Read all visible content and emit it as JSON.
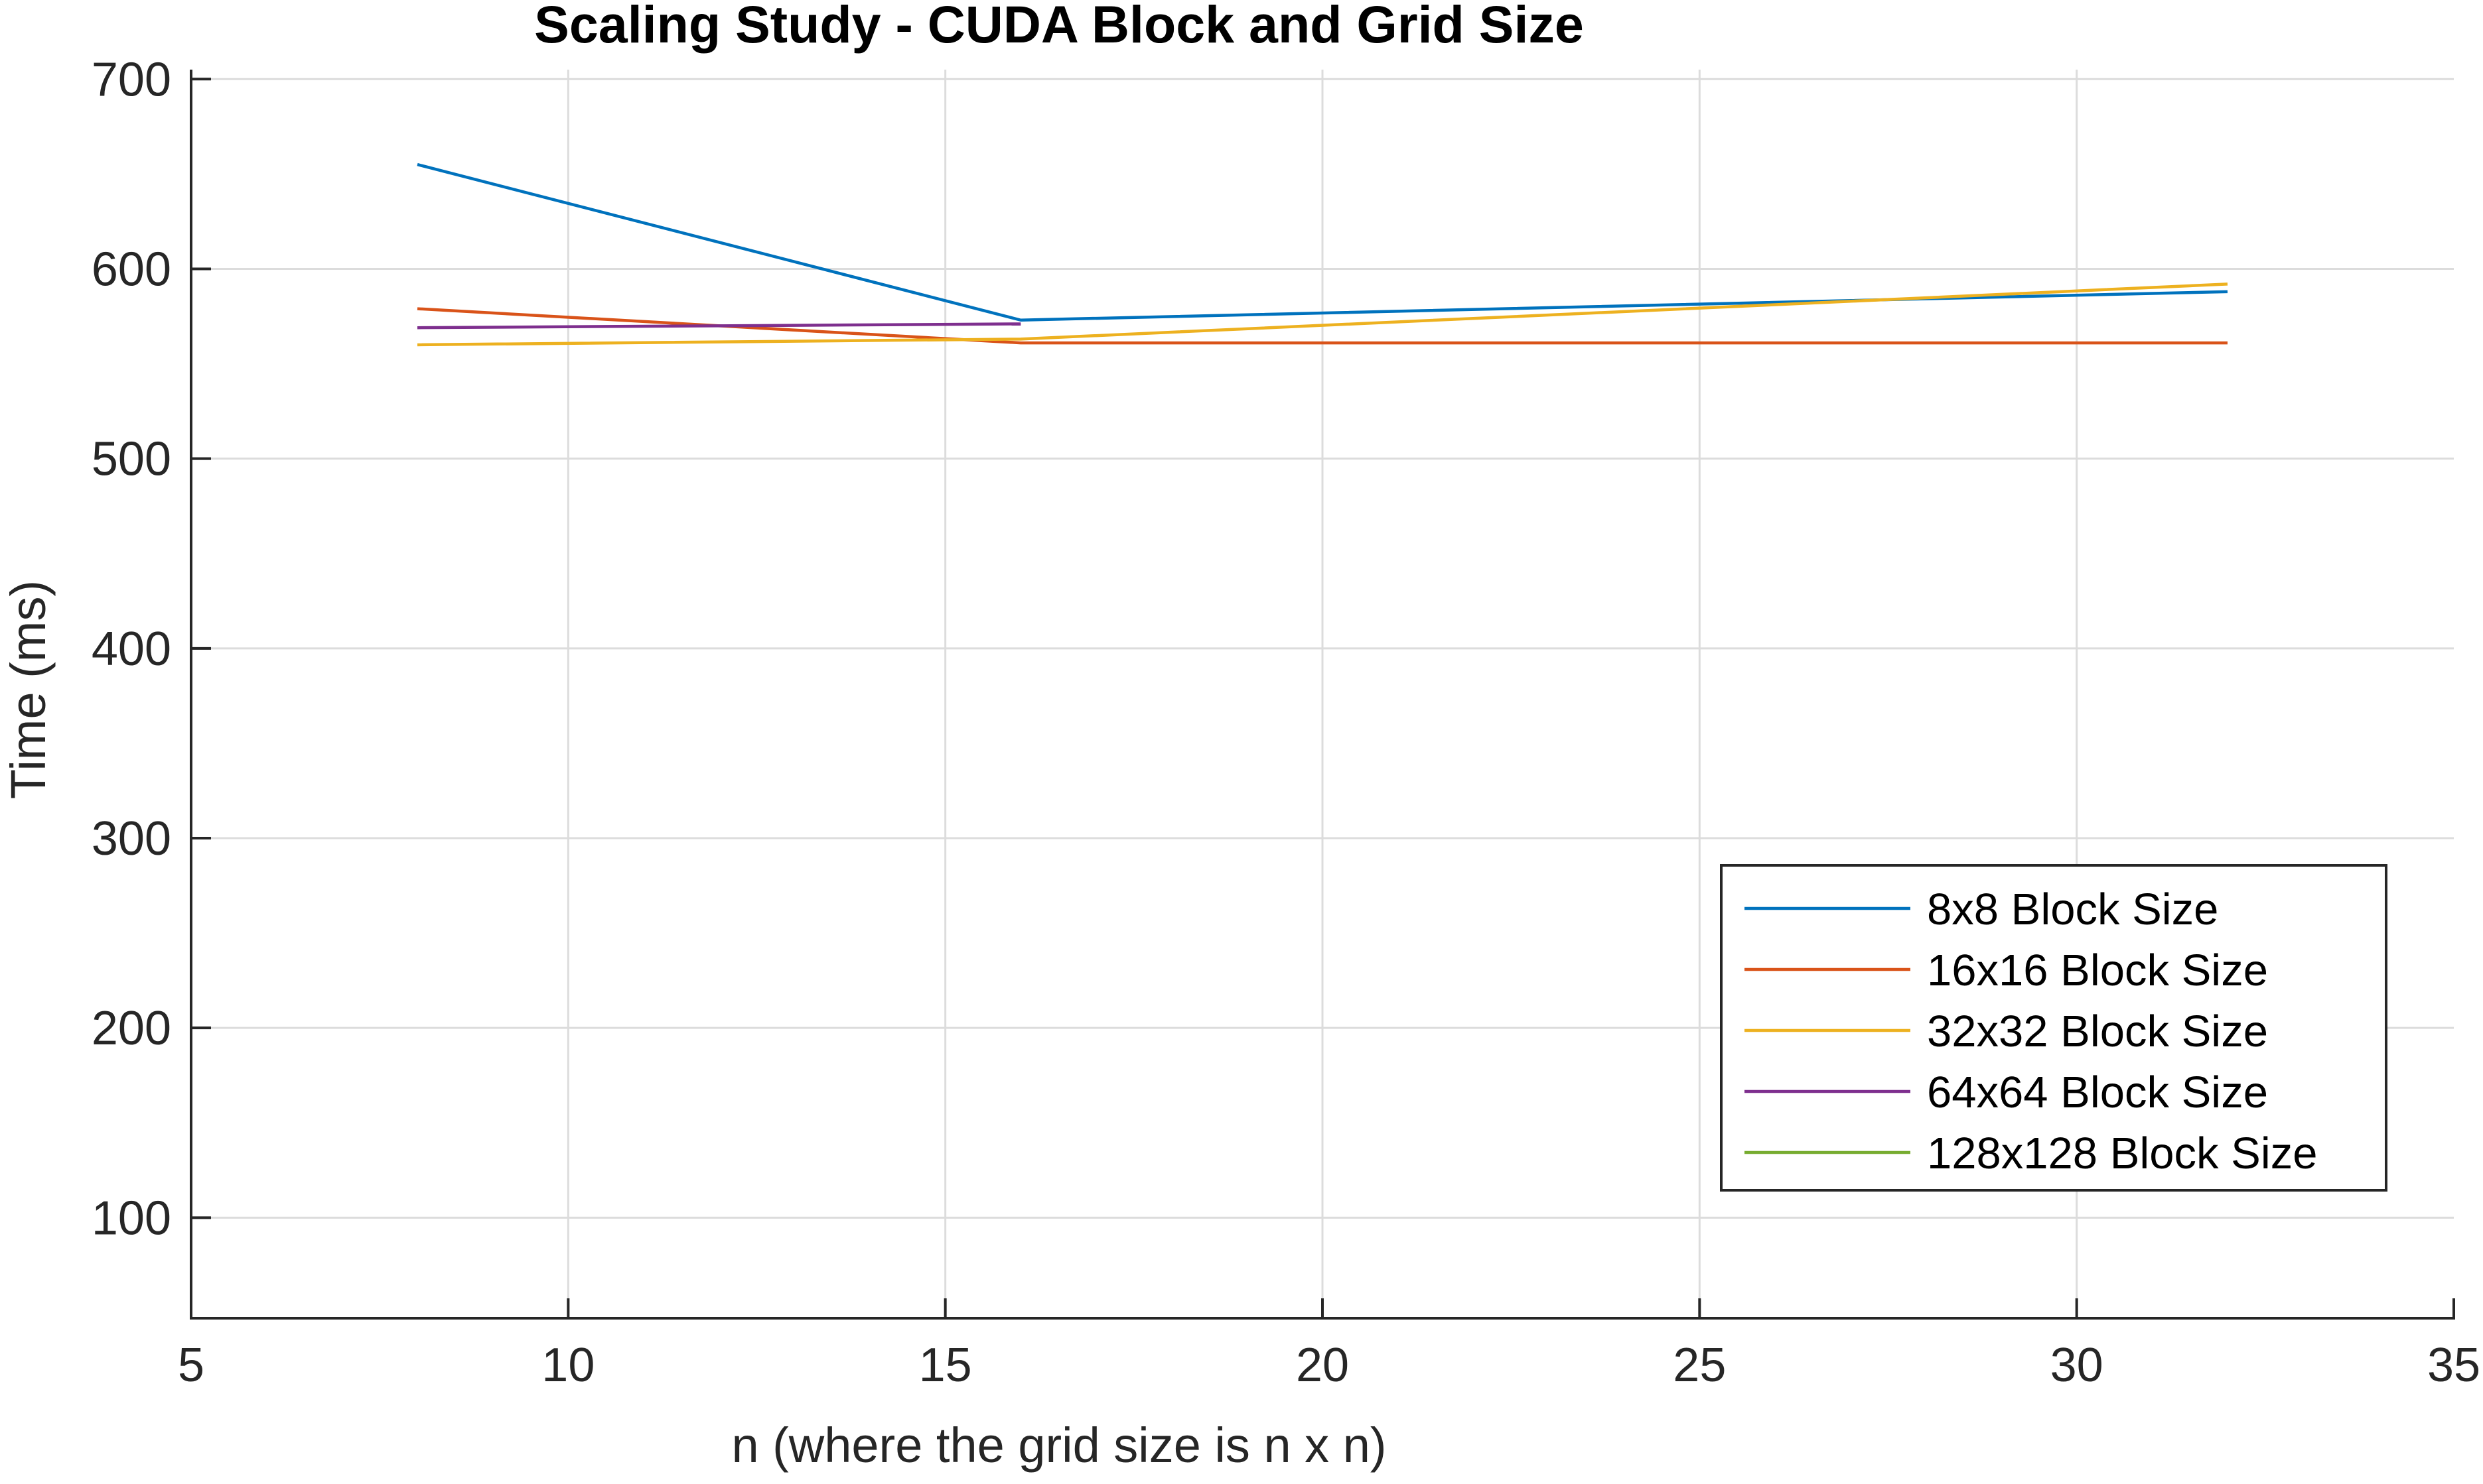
{
  "chart_data": {
    "type": "line",
    "title": "Scaling Study - CUDA Block and Grid Size",
    "xlabel": "n (where the grid size is n x n)",
    "ylabel": "Time (ms)",
    "xlim": [
      5,
      35
    ],
    "ylim": [
      47,
      705
    ],
    "xticks": [
      5,
      10,
      15,
      20,
      25,
      30,
      35
    ],
    "yticks": [
      100,
      200,
      300,
      400,
      500,
      600,
      700
    ],
    "grid": true,
    "legend_position": "bottom-right",
    "series": [
      {
        "name": "8x8 Block Size",
        "color": "#0072BD",
        "x": [
          8,
          16,
          32
        ],
        "y": [
          655,
          573,
          588
        ]
      },
      {
        "name": "16x16 Block Size",
        "color": "#D95319",
        "x": [
          8,
          16,
          32
        ],
        "y": [
          579,
          561,
          561
        ]
      },
      {
        "name": "32x32 Block Size",
        "color": "#EDB120",
        "x": [
          8,
          16,
          32
        ],
        "y": [
          560,
          563,
          592
        ]
      },
      {
        "name": "64x64 Block Size",
        "color": "#7E2F8E",
        "x": [
          8,
          16
        ],
        "y": [
          569,
          571
        ]
      },
      {
        "name": "128x128 Block Size",
        "color": "#77AC30",
        "x": [],
        "y": []
      }
    ]
  }
}
